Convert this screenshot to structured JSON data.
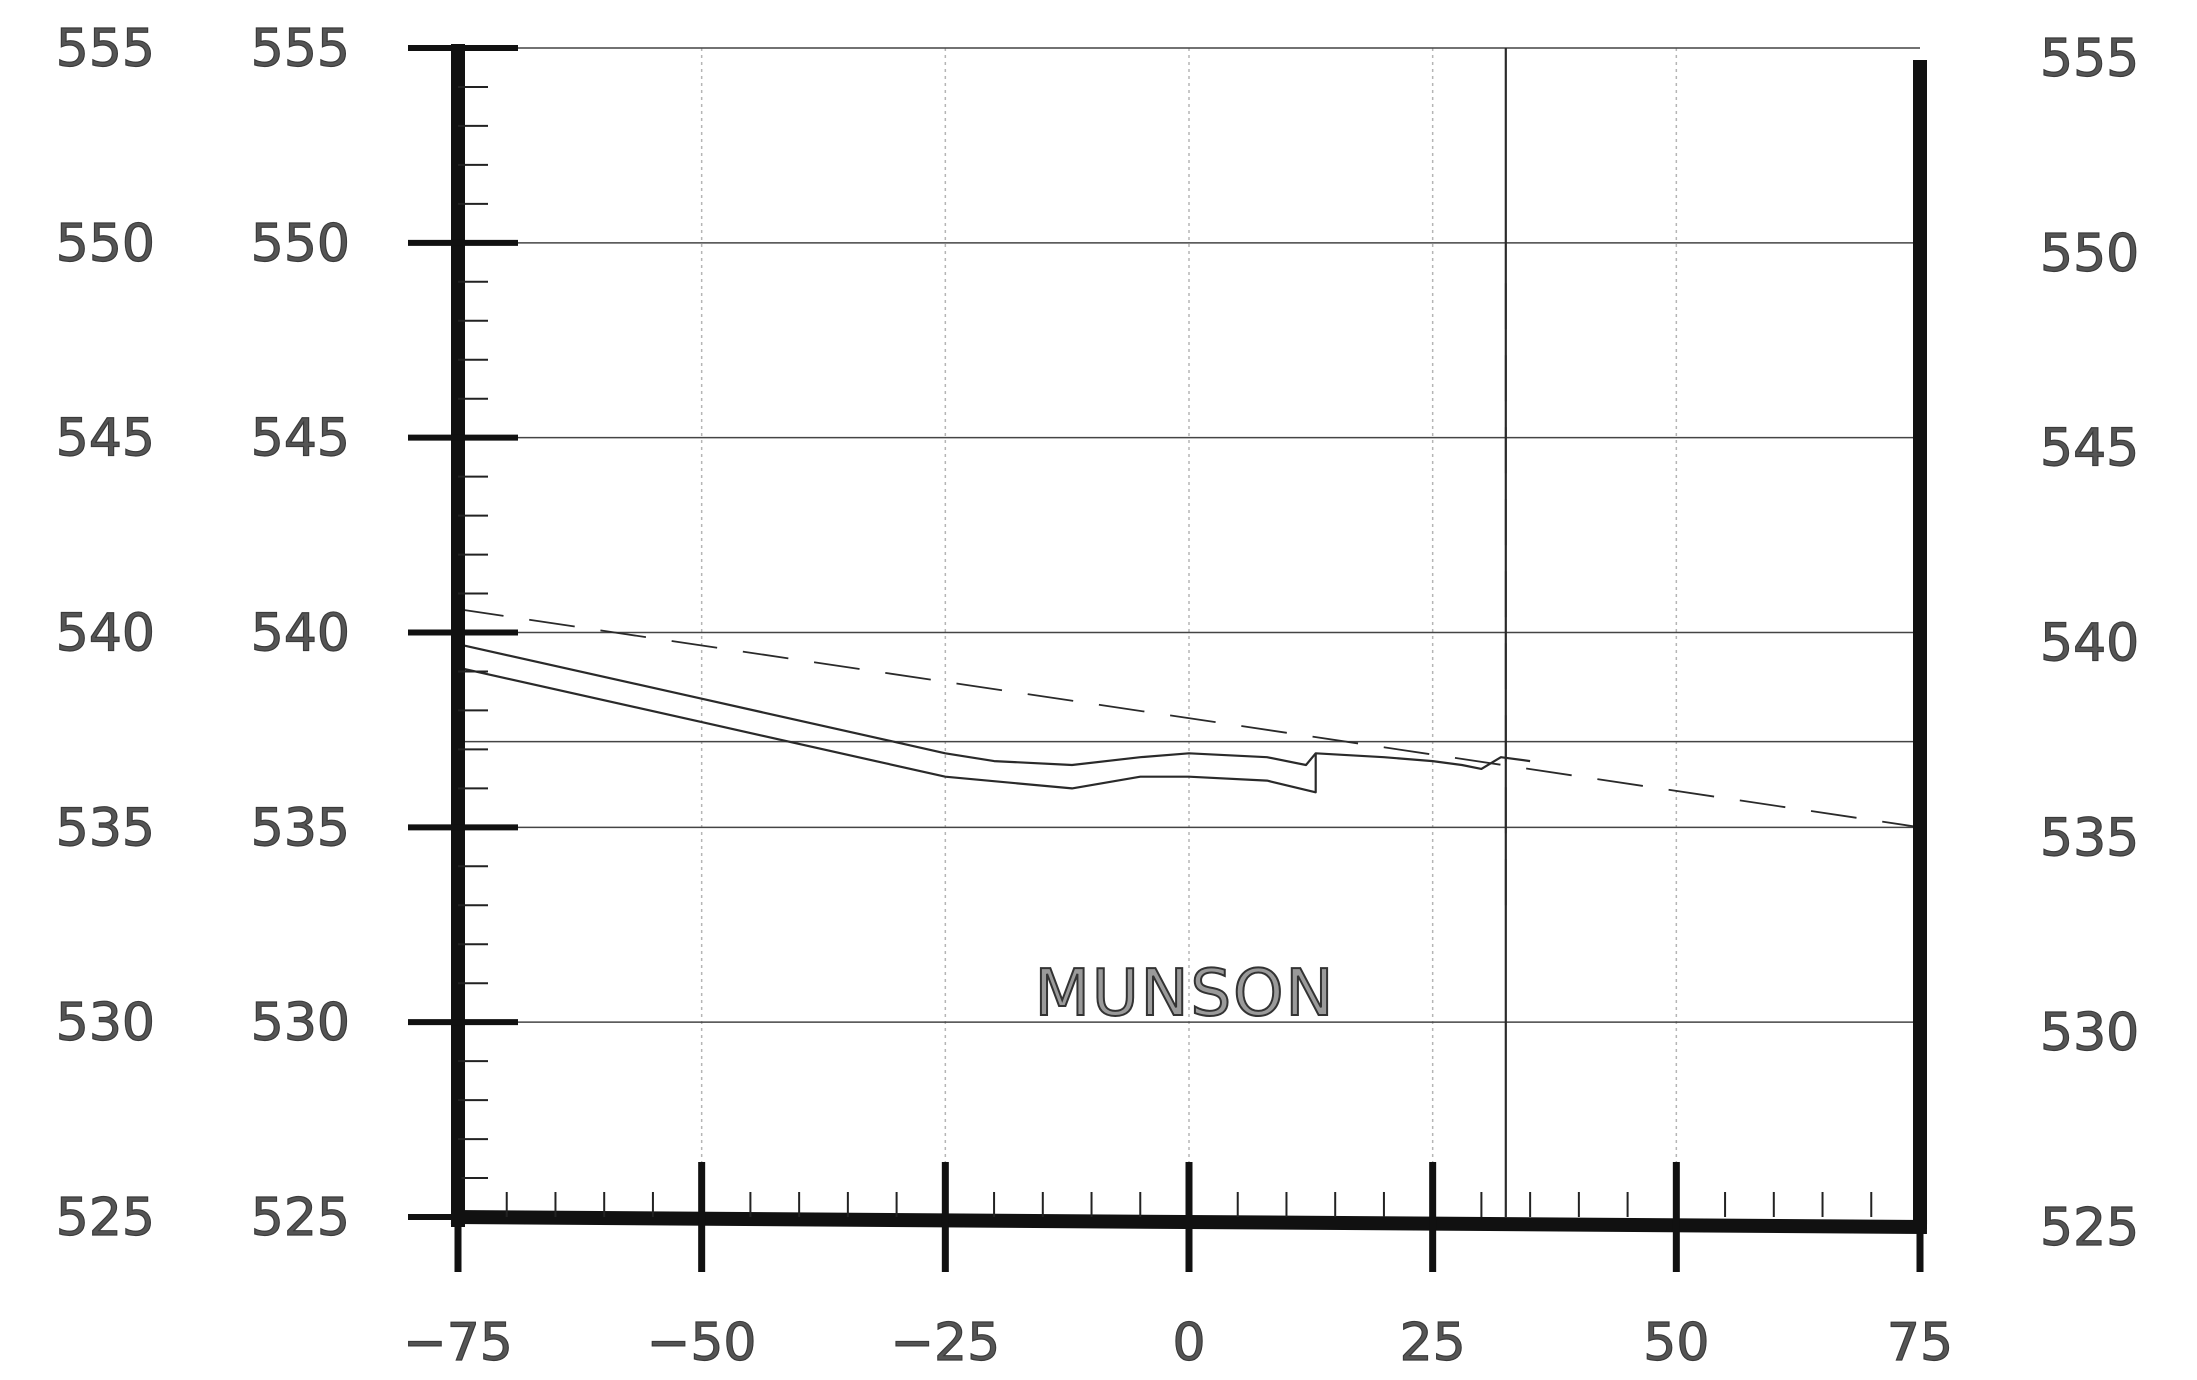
{
  "chart_data": {
    "type": "line",
    "title": "",
    "xlabel": "",
    "ylabel": "",
    "xlim": [
      -75,
      75
    ],
    "ylim": [
      525,
      555
    ],
    "x_ticks": [
      -75,
      -50,
      -25,
      0,
      25,
      50,
      75
    ],
    "x_tick_labels": [
      "−75",
      "−50",
      "−25",
      "0",
      "25",
      "50",
      "75"
    ],
    "y_ticks": [
      525,
      530,
      535,
      540,
      545,
      550,
      555
    ],
    "y_tick_labels": [
      "525",
      "530",
      "535",
      "540",
      "545",
      "550",
      "555"
    ],
    "annotation": "MUNSON",
    "grid": true,
    "series": [
      {
        "style": "dashed",
        "x": [
          -75,
          75
        ],
        "y": [
          540.6,
          535.0
        ]
      },
      {
        "style": "solid",
        "x": [
          -75,
          -50,
          -25,
          -20,
          -12,
          -5,
          0,
          8,
          12,
          13,
          20,
          25,
          28,
          30,
          32,
          35
        ],
        "y": [
          539.7,
          538.3,
          536.9,
          536.7,
          536.6,
          536.8,
          536.9,
          536.8,
          536.6,
          536.9,
          536.8,
          536.7,
          536.6,
          536.5,
          536.8,
          536.7
        ]
      },
      {
        "style": "solid",
        "x": [
          -75,
          -50,
          -25,
          -12,
          -5,
          0,
          8,
          13,
          13
        ],
        "y": [
          539.1,
          537.7,
          536.3,
          536.0,
          536.3,
          536.3,
          536.2,
          535.9,
          536.9
        ]
      },
      {
        "style": "solid",
        "x": [
          32.5,
          32.5
        ],
        "y": [
          525,
          555
        ]
      },
      {
        "style": "dashed",
        "x": [
          32.5,
          32.5
        ],
        "y": [
          533,
          549
        ]
      }
    ]
  }
}
